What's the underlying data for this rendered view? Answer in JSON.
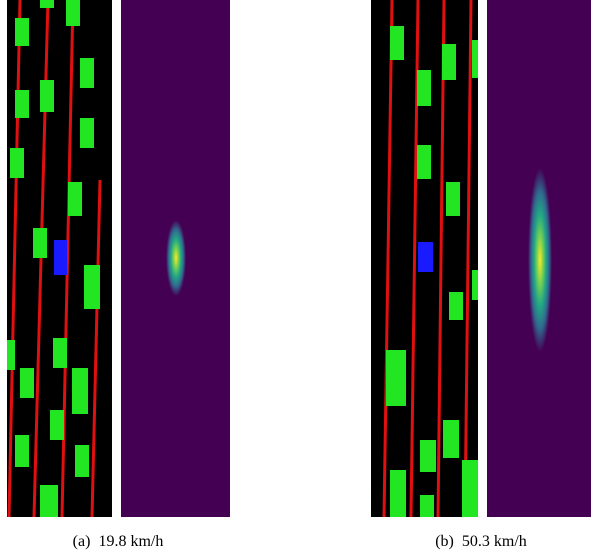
{
  "figure": {
    "panels": [
      {
        "label": "(a)",
        "caption": "19.8 km/h"
      },
      {
        "label": "(b)",
        "caption": "50.3 km/h"
      }
    ]
  }
}
